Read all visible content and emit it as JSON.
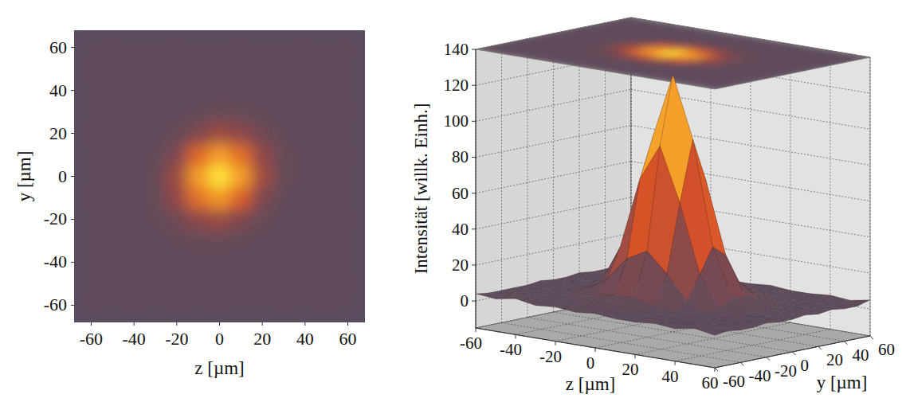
{
  "chart_data": [
    {
      "type": "heatmap",
      "x_label": "z [µm]",
      "y_label": "y [µm]",
      "x": [
        -60,
        -50,
        -40,
        -30,
        -20,
        -10,
        0,
        10,
        20,
        30,
        40,
        50,
        60
      ],
      "y": [
        -60,
        -50,
        -40,
        -30,
        -20,
        -10,
        0,
        10,
        20,
        30,
        40,
        50,
        60
      ],
      "cells": [
        [
          4,
          3,
          5,
          3,
          4,
          3,
          4,
          3,
          3,
          4,
          3,
          5,
          3
        ],
        [
          3,
          4,
          3,
          4,
          3,
          5,
          4,
          3,
          4,
          3,
          4,
          3,
          4
        ],
        [
          3,
          3,
          4,
          3,
          4,
          5,
          5,
          4,
          3,
          3,
          3,
          4,
          3
        ],
        [
          3,
          4,
          3,
          4,
          6,
          8,
          8,
          6,
          4,
          3,
          4,
          3,
          3
        ],
        [
          3,
          3,
          4,
          6,
          14,
          27,
          33,
          22,
          9,
          4,
          3,
          3,
          4
        ],
        [
          4,
          3,
          3,
          8,
          30,
          70,
          90,
          60,
          22,
          6,
          3,
          4,
          3
        ],
        [
          3,
          4,
          3,
          8,
          34,
          92,
          128,
          94,
          36,
          9,
          4,
          3,
          3
        ],
        [
          3,
          3,
          4,
          6,
          22,
          64,
          93,
          70,
          30,
          9,
          4,
          3,
          4
        ],
        [
          4,
          3,
          3,
          4,
          9,
          22,
          34,
          28,
          14,
          6,
          3,
          4,
          3
        ],
        [
          3,
          4,
          3,
          3,
          4,
          6,
          9,
          8,
          6,
          4,
          3,
          3,
          4
        ],
        [
          3,
          3,
          4,
          3,
          3,
          4,
          5,
          5,
          4,
          3,
          4,
          3,
          3
        ],
        [
          4,
          3,
          3,
          4,
          3,
          3,
          4,
          3,
          4,
          3,
          3,
          4,
          3
        ],
        [
          3,
          4,
          3,
          3,
          4,
          3,
          3,
          4,
          3,
          3,
          4,
          3,
          5
        ]
      ],
      "color_range": [
        0,
        130
      ],
      "xlim": [
        -68,
        68
      ],
      "ylim": [
        -68,
        68
      ],
      "xticks": [
        -60,
        -40,
        -20,
        0,
        20,
        40,
        60
      ],
      "yticks": [
        -60,
        -40,
        -20,
        0,
        20,
        40,
        60
      ]
    },
    {
      "type": "surface",
      "x_label": "z [µm]",
      "y_label": "y [µm]",
      "z_label": "Intensität [willk. Einh.]",
      "x": [
        -60,
        -50,
        -40,
        -30,
        -20,
        -10,
        0,
        10,
        20,
        30,
        40,
        50,
        60
      ],
      "y": [
        -60,
        -50,
        -40,
        -30,
        -20,
        -10,
        0,
        10,
        20,
        30,
        40,
        50,
        60
      ],
      "cells": [
        [
          4,
          3,
          5,
          3,
          4,
          3,
          4,
          3,
          3,
          4,
          3,
          5,
          3
        ],
        [
          3,
          4,
          3,
          4,
          3,
          5,
          4,
          3,
          4,
          3,
          4,
          3,
          4
        ],
        [
          3,
          3,
          4,
          3,
          4,
          5,
          5,
          4,
          3,
          3,
          3,
          4,
          3
        ],
        [
          3,
          4,
          3,
          4,
          6,
          8,
          8,
          6,
          4,
          3,
          4,
          3,
          3
        ],
        [
          3,
          3,
          4,
          6,
          14,
          27,
          33,
          22,
          9,
          4,
          3,
          3,
          4
        ],
        [
          4,
          3,
          3,
          8,
          30,
          70,
          90,
          60,
          22,
          6,
          3,
          4,
          3
        ],
        [
          3,
          4,
          3,
          8,
          34,
          92,
          128,
          94,
          36,
          9,
          4,
          3,
          3
        ],
        [
          3,
          3,
          4,
          6,
          22,
          64,
          93,
          70,
          30,
          9,
          4,
          3,
          4
        ],
        [
          4,
          3,
          3,
          4,
          9,
          22,
          34,
          28,
          14,
          6,
          3,
          4,
          3
        ],
        [
          3,
          4,
          3,
          3,
          4,
          6,
          9,
          8,
          6,
          4,
          3,
          3,
          4
        ],
        [
          3,
          3,
          4,
          3,
          3,
          4,
          5,
          5,
          4,
          3,
          4,
          3,
          3
        ],
        [
          4,
          3,
          3,
          4,
          3,
          3,
          4,
          3,
          4,
          3,
          3,
          4,
          3
        ],
        [
          3,
          4,
          3,
          3,
          4,
          3,
          3,
          4,
          3,
          3,
          4,
          3,
          5
        ]
      ],
      "color_range": [
        0,
        130
      ],
      "xlim": [
        -60,
        60
      ],
      "ylim": [
        -60,
        60
      ],
      "zlim": [
        -15,
        140
      ],
      "xticks": [
        -60,
        -40,
        -20,
        0,
        20,
        40,
        60
      ],
      "yticks": [
        -60,
        -40,
        -20,
        0,
        20,
        40,
        60
      ],
      "zticks": [
        0,
        20,
        40,
        60,
        80,
        100,
        120,
        140
      ],
      "grid": true
    }
  ]
}
